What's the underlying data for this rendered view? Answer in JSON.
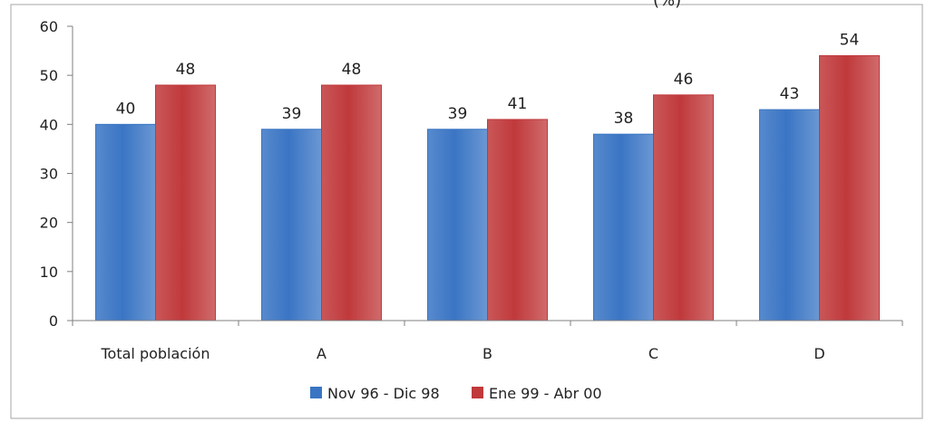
{
  "chart_data": {
    "type": "bar",
    "title_fragment": "(%)",
    "categories": [
      "Total población",
      "A",
      "B",
      "C",
      "D"
    ],
    "series": [
      {
        "name": "Nov 96 - Dic 98",
        "values": [
          40,
          39,
          39,
          38,
          43
        ],
        "color": "#3a75c4"
      },
      {
        "name": "Ene 99 - Abr 00",
        "values": [
          48,
          48,
          41,
          46,
          54
        ],
        "color": "#c0393b"
      }
    ],
    "xlabel": "",
    "ylabel": "",
    "ylim": [
      0,
      60
    ],
    "yticks": [
      0,
      10,
      20,
      30,
      40,
      50,
      60
    ],
    "grid": false,
    "legend": "bottom-center",
    "data_labels": true
  }
}
